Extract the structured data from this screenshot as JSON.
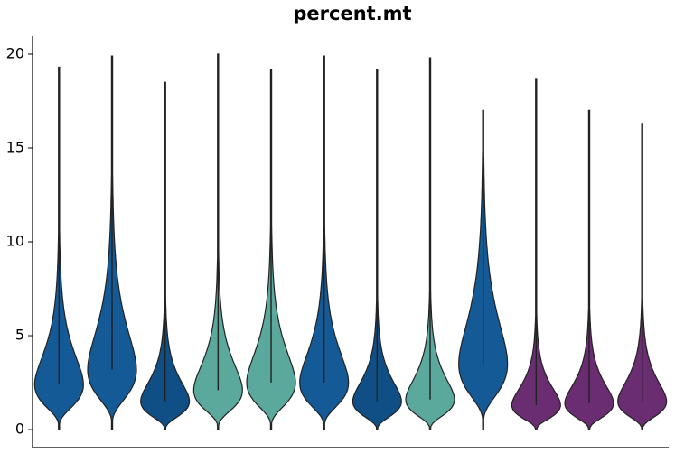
{
  "chart_data": {
    "type": "violin",
    "title": "percent.mt",
    "categories": [
      null,
      null,
      null,
      null,
      null,
      null,
      null,
      null,
      null,
      null,
      null,
      null
    ],
    "colors": [
      "#135a96",
      "#135a96",
      "#0f4f86",
      "#5ba89c",
      "#5ba89c",
      "#135a96",
      "#0f4f86",
      "#5ba89c",
      "#135a96",
      "#6b2d72",
      "#6b2d72",
      "#6b2d72"
    ],
    "min": [
      0,
      0,
      0,
      0,
      0,
      0,
      0,
      0,
      0,
      0,
      0,
      0
    ],
    "peak": [
      2.4,
      3.2,
      1.5,
      2.1,
      2.5,
      2.5,
      1.5,
      1.6,
      3.5,
      1.3,
      1.4,
      1.5
    ],
    "max": [
      19.3,
      19.9,
      18.5,
      20,
      19.2,
      19.9,
      19.2,
      19.8,
      17,
      18.7,
      17,
      16.3
    ],
    "ylim": [
      -0.96,
      20.96
    ],
    "yticks": [
      0,
      5,
      10,
      15,
      20
    ],
    "grid": false
  }
}
